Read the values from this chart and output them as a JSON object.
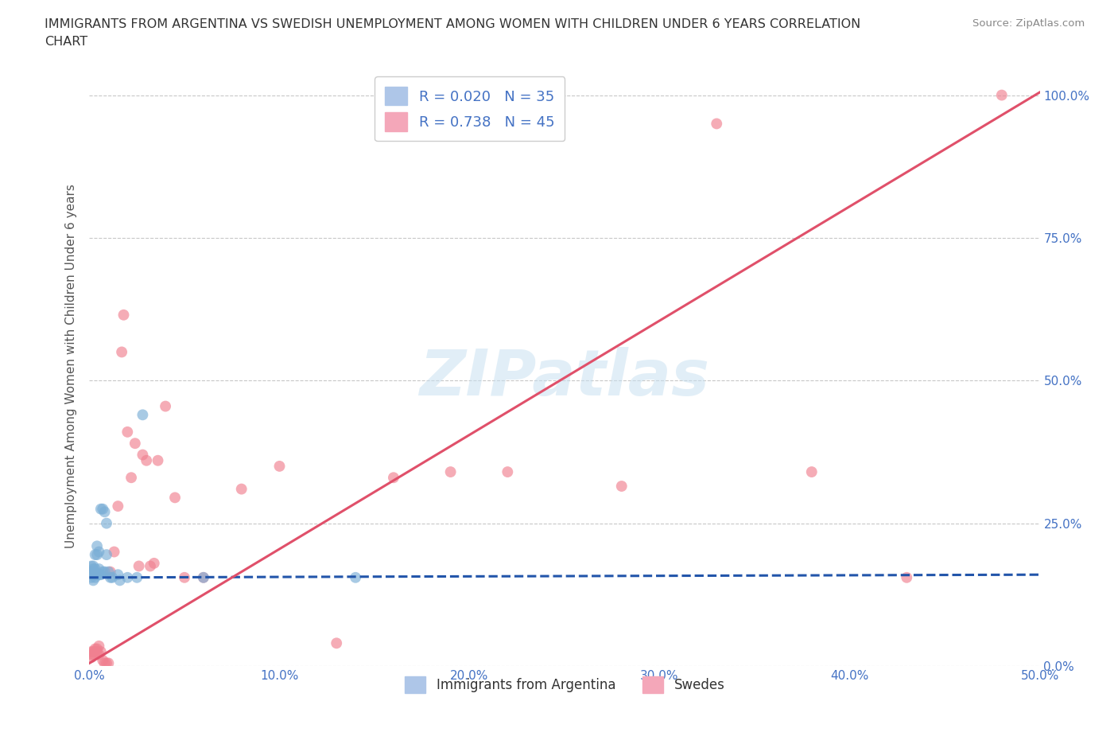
{
  "title_line1": "IMMIGRANTS FROM ARGENTINA VS SWEDISH UNEMPLOYMENT AMONG WOMEN WITH CHILDREN UNDER 6 YEARS CORRELATION",
  "title_line2": "CHART",
  "source": "Source: ZipAtlas.com",
  "ylabel": "Unemployment Among Women with Children Under 6 years",
  "xlim": [
    0.0,
    0.5
  ],
  "ylim": [
    0.0,
    1.05
  ],
  "yticks": [
    0.0,
    0.25,
    0.5,
    0.75,
    1.0
  ],
  "ytick_labels": [
    "0.0%",
    "25.0%",
    "50.0%",
    "75.0%",
    "100.0%"
  ],
  "xticks": [
    0.0,
    0.1,
    0.2,
    0.3,
    0.4,
    0.5
  ],
  "xtick_labels": [
    "0.0%",
    "10.0%",
    "20.0%",
    "30.0%",
    "40.0%",
    "50.0%"
  ],
  "legend_entries": [
    {
      "label": "R = 0.020   N = 35",
      "color": "#aec6e8"
    },
    {
      "label": "R = 0.738   N = 45",
      "color": "#f4a7b9"
    }
  ],
  "legend_bottom": [
    {
      "label": "Immigrants from Argentina",
      "color": "#aec6e8"
    },
    {
      "label": "Swedes",
      "color": "#f4a7b9"
    }
  ],
  "blue_scatter_x": [
    0.001,
    0.001,
    0.001,
    0.002,
    0.002,
    0.002,
    0.002,
    0.003,
    0.003,
    0.003,
    0.003,
    0.004,
    0.004,
    0.004,
    0.005,
    0.005,
    0.005,
    0.006,
    0.006,
    0.007,
    0.007,
    0.008,
    0.008,
    0.009,
    0.009,
    0.01,
    0.011,
    0.012,
    0.015,
    0.016,
    0.02,
    0.025,
    0.028,
    0.06,
    0.14
  ],
  "blue_scatter_y": [
    0.155,
    0.165,
    0.175,
    0.15,
    0.16,
    0.17,
    0.175,
    0.155,
    0.165,
    0.17,
    0.195,
    0.16,
    0.195,
    0.21,
    0.16,
    0.17,
    0.2,
    0.16,
    0.275,
    0.165,
    0.275,
    0.165,
    0.27,
    0.25,
    0.195,
    0.165,
    0.155,
    0.155,
    0.16,
    0.15,
    0.155,
    0.155,
    0.44,
    0.155,
    0.155
  ],
  "pink_scatter_x": [
    0.001,
    0.001,
    0.001,
    0.002,
    0.002,
    0.003,
    0.003,
    0.004,
    0.004,
    0.005,
    0.005,
    0.006,
    0.007,
    0.008,
    0.009,
    0.01,
    0.011,
    0.013,
    0.015,
    0.017,
    0.018,
    0.02,
    0.022,
    0.024,
    0.026,
    0.028,
    0.03,
    0.032,
    0.034,
    0.036,
    0.04,
    0.045,
    0.05,
    0.06,
    0.08,
    0.1,
    0.13,
    0.16,
    0.19,
    0.22,
    0.28,
    0.33,
    0.38,
    0.43,
    0.48
  ],
  "pink_scatter_y": [
    0.025,
    0.02,
    0.015,
    0.025,
    0.02,
    0.025,
    0.03,
    0.025,
    0.03,
    0.02,
    0.035,
    0.025,
    0.01,
    0.005,
    0.005,
    0.005,
    0.165,
    0.2,
    0.28,
    0.55,
    0.615,
    0.41,
    0.33,
    0.39,
    0.175,
    0.37,
    0.36,
    0.175,
    0.18,
    0.36,
    0.455,
    0.295,
    0.155,
    0.155,
    0.31,
    0.35,
    0.04,
    0.33,
    0.34,
    0.34,
    0.315,
    0.95,
    0.34,
    0.155,
    1.0
  ],
  "blue_line_x": [
    0.0,
    0.5
  ],
  "blue_line_y_intercept": 0.155,
  "blue_line_slope": 0.01,
  "pink_line_x": [
    0.0,
    0.5
  ],
  "pink_line_y_intercept": 0.005,
  "pink_line_slope": 2.0,
  "blue_color": "#7aaed6",
  "pink_color": "#f08090",
  "blue_line_color": "#2255aa",
  "pink_line_color": "#e0506a",
  "scatter_alpha": 0.65,
  "scatter_size": 100,
  "watermark": "ZIPatlas",
  "background_color": "#ffffff",
  "grid_color": "#c8c8c8",
  "title_color": "#333333",
  "axis_label_color": "#555555",
  "tick_color": "#4472c4"
}
